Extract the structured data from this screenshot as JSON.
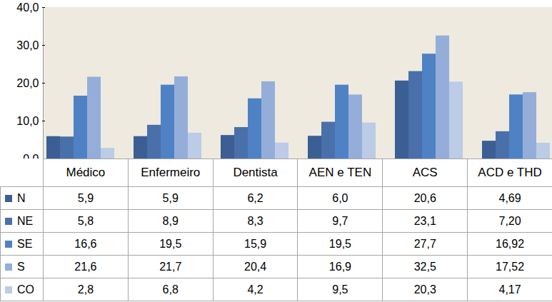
{
  "chart_data": {
    "type": "bar",
    "categories": [
      "Médico",
      "Enfermeiro",
      "Dentista",
      "AEN e TEN",
      "ACS",
      "ACD e THD"
    ],
    "series": [
      {
        "name": "N",
        "color": "#3b5f94",
        "values": [
          5.9,
          5.9,
          6.2,
          6.0,
          20.6,
          4.69
        ],
        "value_labels": [
          "5,9",
          "5,9",
          "6,2",
          "6,0",
          "20,6",
          "4,69"
        ]
      },
      {
        "name": "NE",
        "color": "#4a70aa",
        "values": [
          5.8,
          8.9,
          8.3,
          9.7,
          23.1,
          7.2
        ],
        "value_labels": [
          "5,8",
          "8,9",
          "8,3",
          "9,7",
          "23,1",
          "7,20"
        ]
      },
      {
        "name": "SE",
        "color": "#4f82c4",
        "values": [
          16.6,
          19.5,
          15.9,
          19.5,
          27.7,
          16.92
        ],
        "value_labels": [
          "16,6",
          "19,5",
          "15,9",
          "19,5",
          "27,7",
          "16,92"
        ]
      },
      {
        "name": "S",
        "color": "#95aed9",
        "values": [
          21.6,
          21.7,
          20.4,
          16.9,
          32.5,
          17.52
        ],
        "value_labels": [
          "21,6",
          "21,7",
          "20,4",
          "16,9",
          "32,5",
          "17,52"
        ]
      },
      {
        "name": "CO",
        "color": "#bccbe6",
        "values": [
          2.8,
          6.8,
          4.2,
          9.5,
          20.3,
          4.17
        ],
        "value_labels": [
          "2,8",
          "6,8",
          "4,2",
          "9,5",
          "20,3",
          "4,17"
        ]
      }
    ],
    "ylim": [
      0,
      40
    ],
    "yticks": [
      {
        "value": 0,
        "label": "0,0"
      },
      {
        "value": 10,
        "label": "10,0"
      },
      {
        "value": 20,
        "label": "20,0"
      },
      {
        "value": 30,
        "label": "30,0"
      },
      {
        "value": 40,
        "label": "40,0"
      }
    ],
    "grid": false,
    "legend": "bottom"
  }
}
